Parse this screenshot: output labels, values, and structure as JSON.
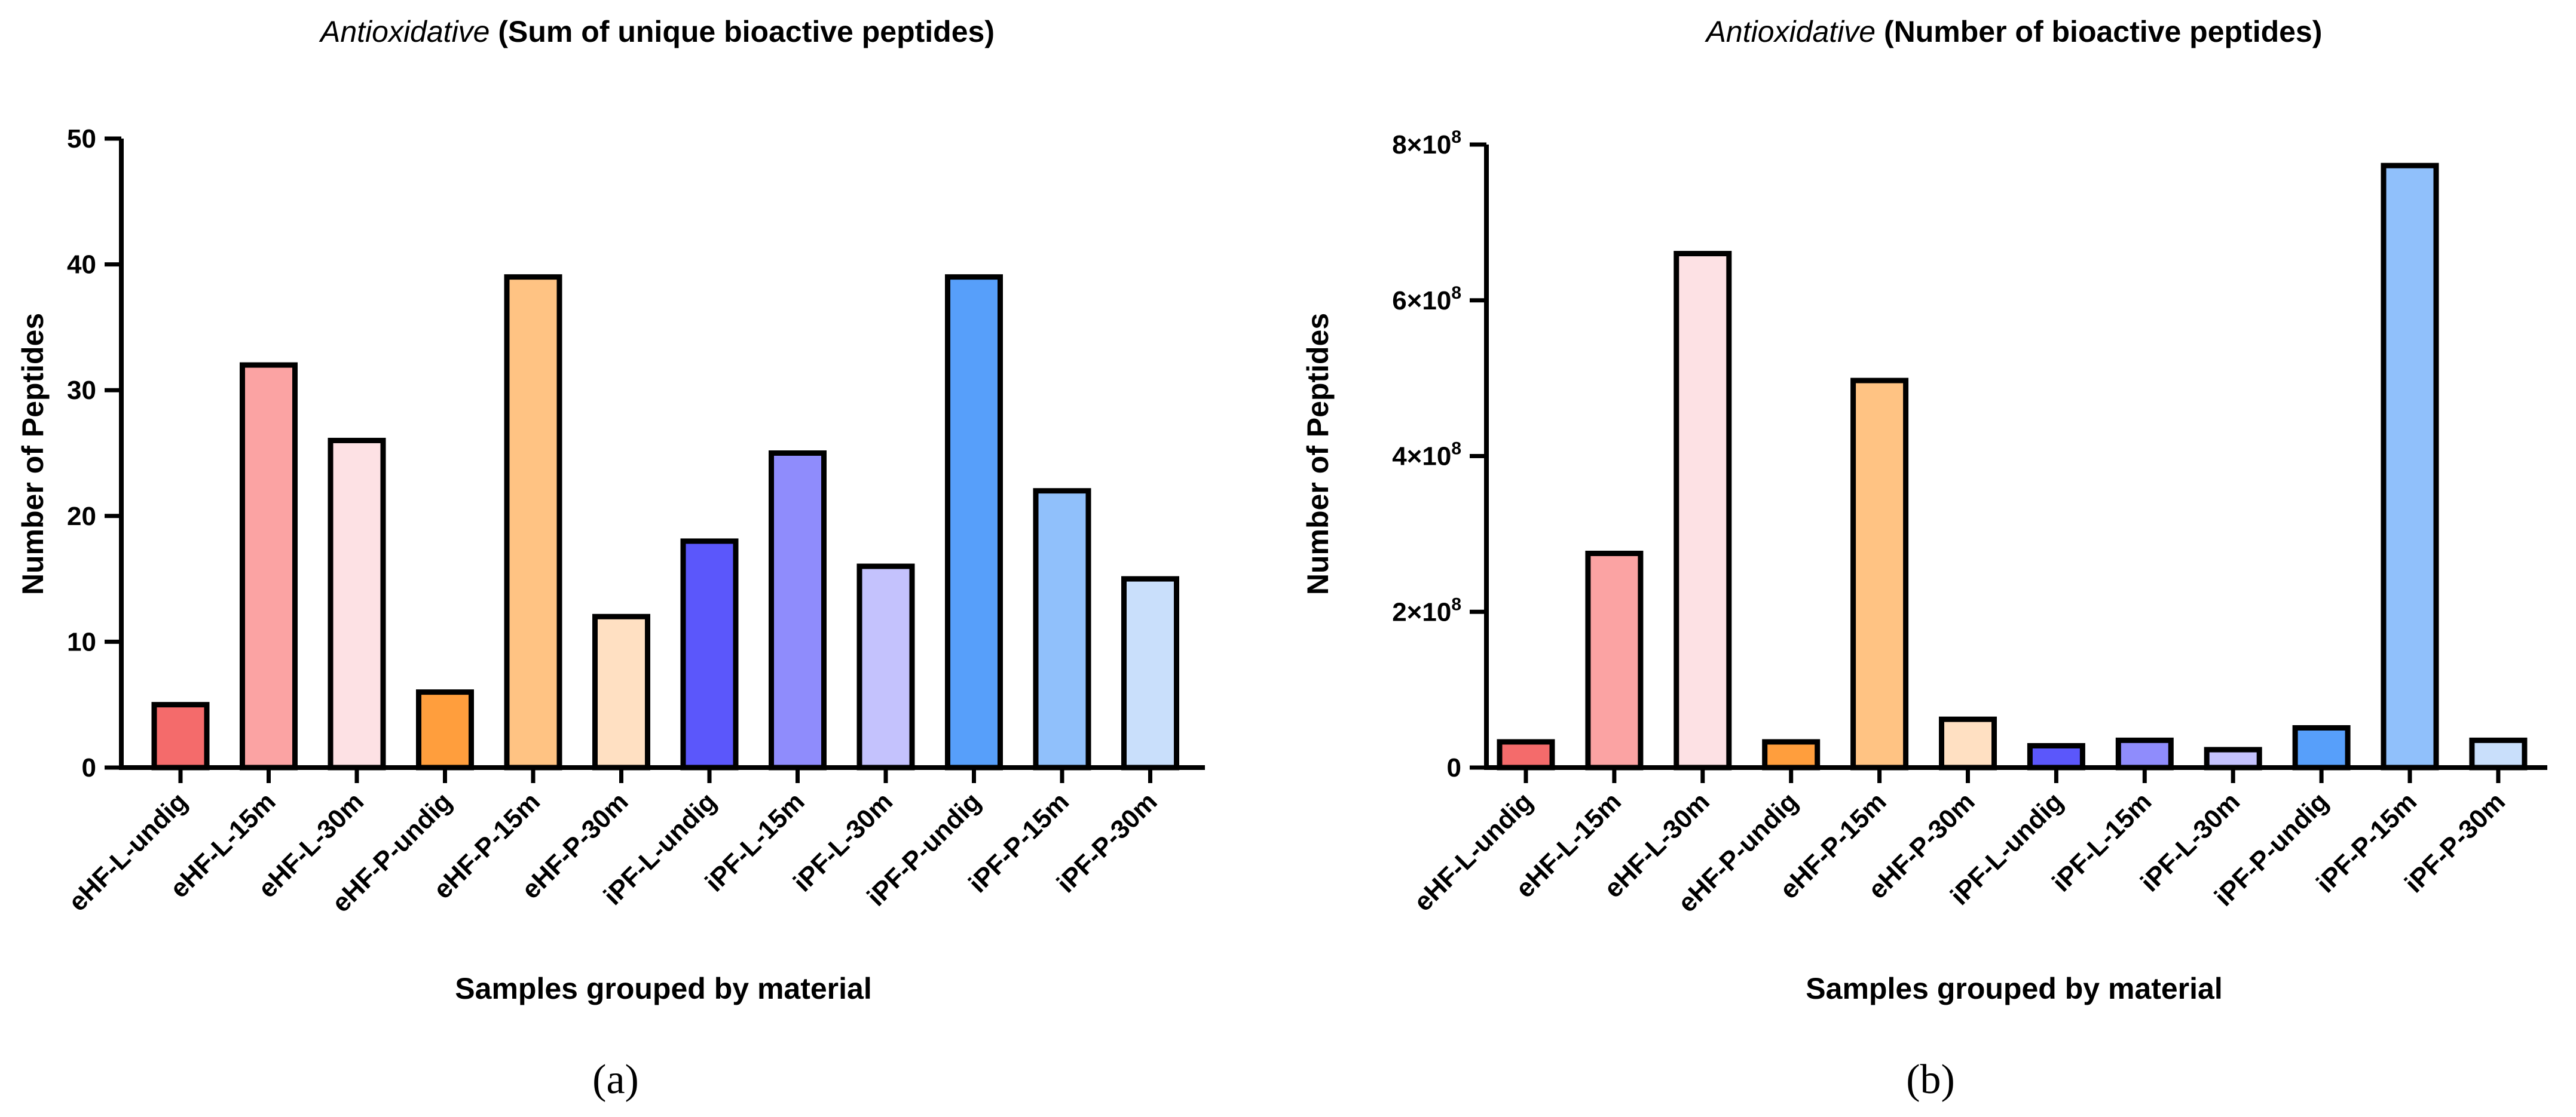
{
  "chart_data": [
    {
      "type": "bar",
      "title_italic": "Antioxidative",
      "title_bold": " (Sum of unique bioactive peptides)",
      "xlabel": "Samples grouped by material",
      "ylabel": "Number of Peptides",
      "panel_label": "(a)",
      "ylim": [
        0,
        50
      ],
      "yticks": [
        0,
        10,
        20,
        30,
        40,
        50
      ],
      "ytick_labels": [
        "0",
        "10",
        "20",
        "30",
        "40",
        "50"
      ],
      "categories": [
        "eHF-L-undig",
        "eHF-L-15m",
        "eHF-L-30m",
        "eHF-P-undig",
        "eHF-P-15m",
        "eHF-P-30m",
        "iPF-L-undig",
        "iPF-L-15m",
        "iPF-L-30m",
        "iPF-P-undig",
        "iPF-P-15m",
        "iPF-P-30m"
      ],
      "values": [
        5,
        32,
        26,
        6,
        39,
        12,
        18,
        25,
        16,
        39,
        22,
        15
      ],
      "colors": [
        "#F46B6B",
        "#FBA3A3",
        "#FDE1E4",
        "#FF9E3D",
        "#FFC383",
        "#FFE0C2",
        "#5B57FB",
        "#8F8CFC",
        "#C4C2FD",
        "#579FFA",
        "#90C0FB",
        "#C9DFFB"
      ]
    },
    {
      "type": "bar",
      "title_italic": "Antioxidative",
      "title_bold": " (Number of bioactive peptides)",
      "xlabel": "Samples grouped by material",
      "ylabel": "Number of Peptides",
      "panel_label": "(b)",
      "ylim": [
        0,
        800000000
      ],
      "yticks": [
        0,
        200000000,
        400000000,
        600000000,
        800000000
      ],
      "ytick_labels": [
        {
          "mantissa": "0",
          "exp": ""
        },
        {
          "mantissa": "2×10",
          "exp": "8"
        },
        {
          "mantissa": "4×10",
          "exp": "8"
        },
        {
          "mantissa": "6×10",
          "exp": "8"
        },
        {
          "mantissa": "8×10",
          "exp": "8"
        }
      ],
      "categories": [
        "eHF-L-undig",
        "eHF-L-15m",
        "eHF-L-30m",
        "eHF-P-undig",
        "eHF-P-15m",
        "eHF-P-30m",
        "iPF-L-undig",
        "iPF-L-15m",
        "iPF-L-30m",
        "iPF-P-undig",
        "iPF-P-15m",
        "iPF-P-30m"
      ],
      "values": [
        33000000,
        275000000,
        660000000,
        33000000,
        497000000,
        62000000,
        28000000,
        35000000,
        23000000,
        51000000,
        773000000,
        35000000
      ],
      "colors": [
        "#F46B6B",
        "#FBA3A3",
        "#FDE1E4",
        "#FF9E3D",
        "#FFC383",
        "#FFE0C2",
        "#5B57FB",
        "#8F8CFC",
        "#C4C2FD",
        "#579FFA",
        "#90C0FB",
        "#C9DFFB"
      ]
    }
  ]
}
